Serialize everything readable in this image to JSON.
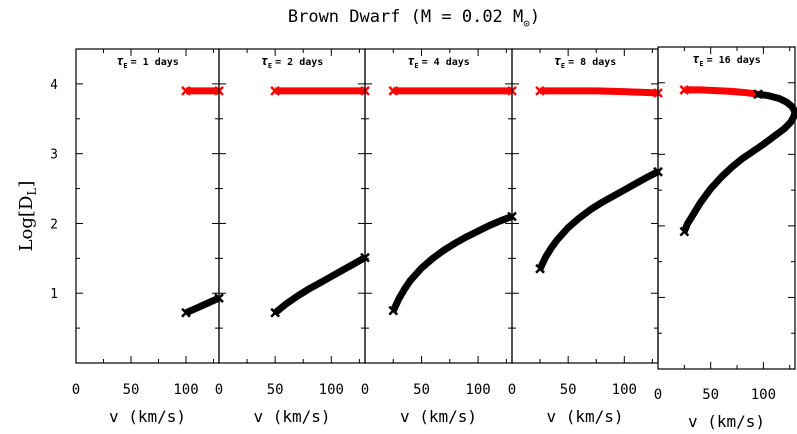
{
  "figure_title": "Brown Dwarf (M = 0.02 M",
  "sun_symbol": "⊙",
  "chart_data": [
    {
      "type": "line",
      "panel_label": "τE = 1 days",
      "tau_symbol": "τ",
      "tau_sub": "E",
      "tau_rest": "= 1 days",
      "xlabel": "v (km/s)",
      "ylabel": "Log[DL]",
      "xlim": [
        0,
        130
      ],
      "ylim": [
        0,
        4.5
      ],
      "xticks": [
        "0",
        "50",
        "100"
      ],
      "yticks": [
        "1",
        "2",
        "3",
        "4"
      ],
      "series": [
        {
          "color": "#ff0000",
          "x": [
            100,
            130
          ],
          "y": [
            3.9,
            3.9
          ]
        },
        {
          "color": "#000000",
          "x": [
            100,
            110,
            120,
            130
          ],
          "y": [
            0.72,
            0.79,
            0.86,
            0.93
          ]
        }
      ]
    },
    {
      "type": "line",
      "panel_label": "τE = 2 days",
      "tau_symbol": "τ",
      "tau_sub": "E",
      "tau_rest": "= 2 days",
      "xlabel": "v (km/s)",
      "ylabel": "",
      "xlim": [
        0,
        130
      ],
      "ylim": [
        0,
        4.5
      ],
      "xticks": [
        "0",
        "50",
        "100"
      ],
      "yticks": [],
      "series": [
        {
          "color": "#ff0000",
          "x": [
            50,
            130
          ],
          "y": [
            3.9,
            3.9
          ]
        },
        {
          "color": "#000000",
          "x": [
            50,
            60,
            70,
            80,
            90,
            100,
            110,
            120,
            130
          ],
          "y": [
            0.72,
            0.85,
            0.96,
            1.06,
            1.15,
            1.24,
            1.33,
            1.42,
            1.51
          ]
        }
      ]
    },
    {
      "type": "line",
      "panel_label": "τE = 4 days",
      "tau_symbol": "τ",
      "tau_sub": "E",
      "tau_rest": "= 4 days",
      "xlabel": "v (km/s)",
      "ylabel": "",
      "xlim": [
        0,
        130
      ],
      "ylim": [
        0,
        4.5
      ],
      "xticks": [
        "0",
        "50",
        "100"
      ],
      "yticks": [],
      "series": [
        {
          "color": "#ff0000",
          "x": [
            25,
            130
          ],
          "y": [
            3.9,
            3.9
          ]
        },
        {
          "color": "#000000",
          "x": [
            25,
            30,
            35,
            40,
            50,
            60,
            70,
            80,
            90,
            100,
            110,
            120,
            130
          ],
          "y": [
            0.75,
            0.92,
            1.06,
            1.18,
            1.36,
            1.5,
            1.62,
            1.72,
            1.81,
            1.89,
            1.97,
            2.04,
            2.1
          ]
        }
      ]
    },
    {
      "type": "line",
      "panel_label": "τE = 8 days",
      "tau_symbol": "τ",
      "tau_sub": "E",
      "tau_rest": "= 8 days",
      "xlabel": "v (km/s)",
      "ylabel": "",
      "xlim": [
        0,
        130
      ],
      "ylim": [
        0,
        4.5
      ],
      "xticks": [
        "0",
        "50",
        "100"
      ],
      "yticks": [],
      "series": [
        {
          "color": "#ff0000",
          "x": [
            25,
            50,
            75,
            100,
            130
          ],
          "y": [
            3.9,
            3.9,
            3.9,
            3.89,
            3.87
          ]
        },
        {
          "color": "#000000",
          "x": [
            25,
            30,
            35,
            40,
            50,
            60,
            70,
            80,
            90,
            100,
            110,
            120,
            130
          ],
          "y": [
            1.35,
            1.52,
            1.65,
            1.76,
            1.94,
            2.08,
            2.2,
            2.3,
            2.39,
            2.48,
            2.57,
            2.66,
            2.74
          ]
        }
      ]
    },
    {
      "type": "line",
      "panel_label": "τE = 16 days",
      "tau_symbol": "τ",
      "tau_sub": "E",
      "tau_rest": "= 16 days",
      "xlabel": "v (km/s)",
      "ylabel": "",
      "xlim": [
        0,
        130
      ],
      "ylim": [
        0,
        4.5
      ],
      "xticks": [
        "0",
        "50",
        "100"
      ],
      "yticks": [
        "1",
        "2",
        "3",
        "4"
      ],
      "series": [
        {
          "color": "#ff0000",
          "x": [
            25,
            40,
            55,
            70,
            85,
            95
          ],
          "y": [
            3.9,
            3.9,
            3.89,
            3.88,
            3.86,
            3.84
          ]
        },
        {
          "color": "#000000",
          "x": [
            95,
            105,
            115,
            122,
            127,
            130,
            129,
            126,
            120,
            110,
            100,
            90,
            80,
            70,
            60,
            50,
            40,
            33,
            28,
            25
          ],
          "y": [
            3.84,
            3.82,
            3.78,
            3.73,
            3.67,
            3.6,
            3.53,
            3.45,
            3.36,
            3.25,
            3.14,
            3.04,
            2.94,
            2.82,
            2.68,
            2.52,
            2.32,
            2.15,
            2.03,
            1.92
          ]
        }
      ]
    }
  ]
}
